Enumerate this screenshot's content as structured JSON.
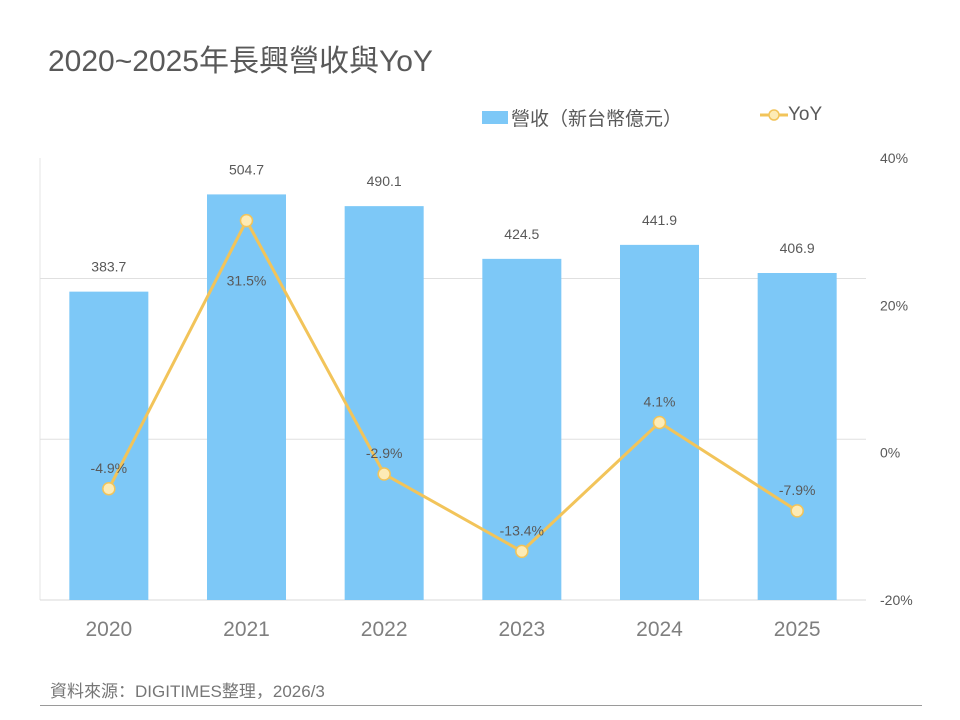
{
  "chart_data": {
    "type": "bar+line",
    "title": "2020~2025年長興營收與YoY",
    "categories": [
      "2020",
      "2021",
      "2022",
      "2023",
      "2024",
      "2025"
    ],
    "series": [
      {
        "name": "營收（新台幣億元）",
        "type": "bar",
        "axis": "left",
        "values": [
          383.7,
          504.7,
          490.1,
          424.5,
          441.9,
          406.9
        ],
        "labels": [
          "383.7",
          "504.7",
          "490.1",
          "424.5",
          "441.9",
          "406.9"
        ],
        "color": "#7DC8F7"
      },
      {
        "name": "YoY",
        "type": "line",
        "axis": "right",
        "values": [
          -4.9,
          31.5,
          -2.9,
          -13.4,
          4.1,
          -7.9
        ],
        "labels": [
          "-4.9%",
          "31.5%",
          "-2.9%",
          "-13.4%",
          "4.1%",
          "-7.9%"
        ],
        "color": "#F2C45A"
      }
    ],
    "left_axis": {
      "ylim": [
        0,
        550
      ],
      "gridlines": [
        200,
        400
      ],
      "labels_visible": false
    },
    "right_axis": {
      "ylim": [
        -20,
        40
      ],
      "ticks": [
        40,
        20,
        0,
        -20
      ],
      "tick_labels": [
        "40%",
        "20%",
        "0%",
        "-20%"
      ]
    },
    "legend_placement": "top-right",
    "source": "資料來源：DIGITIMES整理，2026/3"
  }
}
